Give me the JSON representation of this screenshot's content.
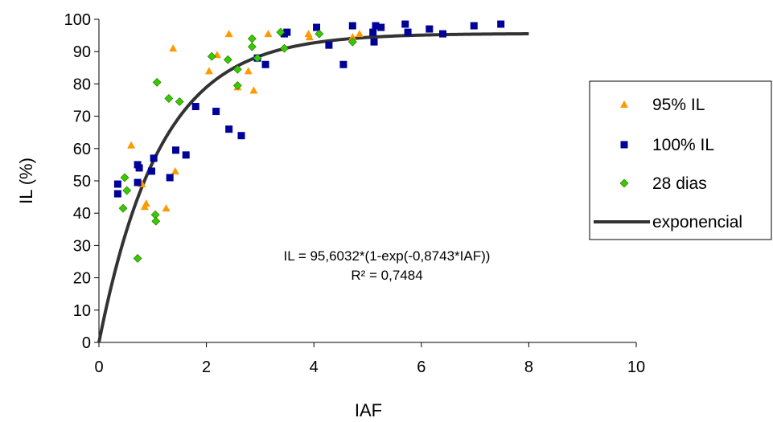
{
  "chart_data": {
    "type": "scatter",
    "title": "",
    "xlabel": "IAF",
    "ylabel": "IL (%)",
    "xlim": [
      0,
      10
    ],
    "ylim": [
      0,
      100
    ],
    "xticks": [
      "0",
      "2",
      "4",
      "6",
      "8",
      "10"
    ],
    "yticks": [
      "0",
      "10",
      "20",
      "30",
      "40",
      "50",
      "60",
      "70",
      "80",
      "90",
      "100"
    ],
    "grid": false,
    "legend_position": "right",
    "annotation": {
      "equation": "IL = 95,6032*(1-exp(-0,8743*IAF))",
      "r2": "R² = 0,7484"
    },
    "series": [
      {
        "name": "95% IL",
        "marker": "triangle",
        "color": "#FF9900",
        "points": [
          [
            0.6,
            61
          ],
          [
            0.8,
            49
          ],
          [
            0.85,
            42
          ],
          [
            0.88,
            43
          ],
          [
            1.25,
            41.5
          ],
          [
            1.38,
            91
          ],
          [
            1.42,
            53
          ],
          [
            2.05,
            84
          ],
          [
            2.2,
            89
          ],
          [
            2.42,
            95.5
          ],
          [
            2.58,
            79
          ],
          [
            2.78,
            84
          ],
          [
            2.88,
            78
          ],
          [
            3.15,
            95.5
          ],
          [
            3.9,
            95.5
          ],
          [
            3.92,
            94.5
          ],
          [
            4.72,
            94.5
          ],
          [
            4.85,
            95.5
          ]
        ]
      },
      {
        "name": "100% IL",
        "marker": "square",
        "color": "#000099",
        "points": [
          [
            0.35,
            49
          ],
          [
            0.35,
            46
          ],
          [
            0.72,
            55
          ],
          [
            0.72,
            49.5
          ],
          [
            0.75,
            54
          ],
          [
            0.98,
            53
          ],
          [
            1.02,
            57
          ],
          [
            1.32,
            51
          ],
          [
            1.43,
            59.5
          ],
          [
            1.62,
            58
          ],
          [
            1.8,
            73
          ],
          [
            2.18,
            71.5
          ],
          [
            2.42,
            66
          ],
          [
            2.65,
            64
          ],
          [
            2.95,
            88
          ],
          [
            3.1,
            86
          ],
          [
            3.45,
            95.5
          ],
          [
            3.5,
            96
          ],
          [
            4.05,
            97.5
          ],
          [
            4.28,
            92
          ],
          [
            4.55,
            86
          ],
          [
            4.72,
            98
          ],
          [
            5.1,
            96
          ],
          [
            5.12,
            93
          ],
          [
            5.15,
            98
          ],
          [
            5.25,
            97.5
          ],
          [
            5.7,
            98.5
          ],
          [
            5.75,
            96
          ],
          [
            6.15,
            97
          ],
          [
            6.4,
            95.5
          ],
          [
            6.98,
            98
          ],
          [
            7.48,
            98.5
          ]
        ]
      },
      {
        "name": "28 dias",
        "marker": "diamond",
        "color": "#33CC00",
        "points": [
          [
            0.45,
            41.5
          ],
          [
            0.48,
            51
          ],
          [
            0.52,
            47
          ],
          [
            0.72,
            26
          ],
          [
            1.05,
            39.5
          ],
          [
            1.06,
            37.5
          ],
          [
            1.08,
            80.5
          ],
          [
            1.3,
            75.5
          ],
          [
            1.5,
            74.5
          ],
          [
            2.1,
            88.5
          ],
          [
            2.4,
            87.5
          ],
          [
            2.58,
            84.5
          ],
          [
            2.58,
            79.5
          ],
          [
            2.85,
            91.5
          ],
          [
            2.85,
            94
          ],
          [
            2.95,
            88
          ],
          [
            3.38,
            96
          ],
          [
            3.45,
            91
          ],
          [
            4.1,
            95.5
          ],
          [
            4.72,
            93
          ]
        ]
      },
      {
        "name": "exponencial",
        "type": "line",
        "color": "#333333",
        "model": {
          "a": 95.6032,
          "b": 0.8743,
          "x_range": [
            0,
            8
          ]
        }
      }
    ]
  }
}
